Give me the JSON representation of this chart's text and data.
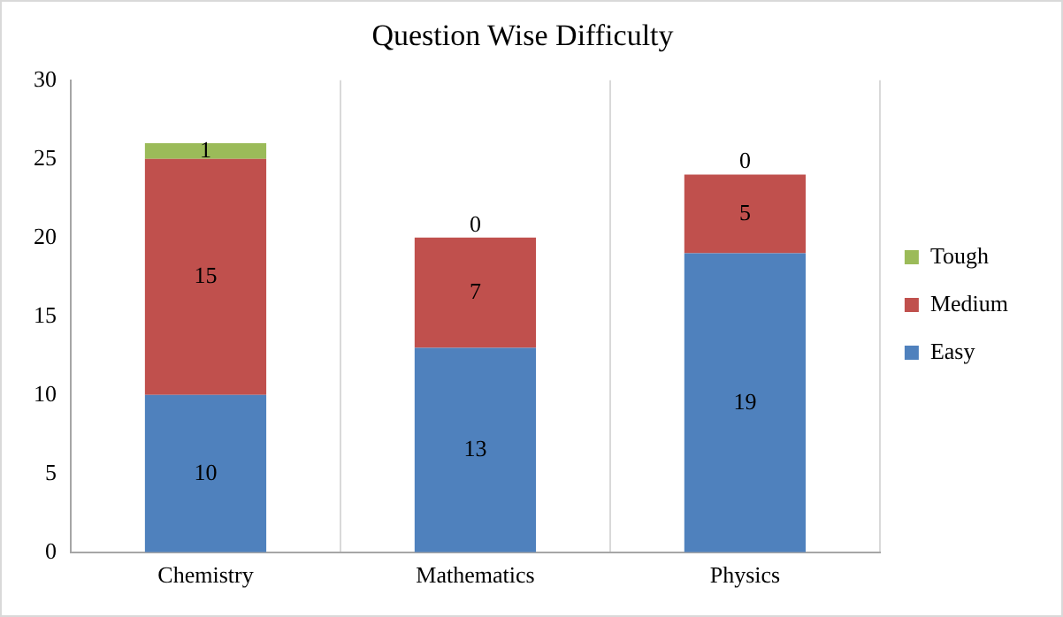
{
  "chart_data": {
    "type": "bar",
    "title": "Question Wise Difficulty",
    "categories": [
      "Chemistry",
      "Mathematics",
      "Physics"
    ],
    "series": [
      {
        "name": "Easy",
        "color": "#4f81bd",
        "values": [
          10,
          13,
          19
        ]
      },
      {
        "name": "Medium",
        "color": "#c0504d",
        "values": [
          15,
          7,
          5
        ]
      },
      {
        "name": "Tough",
        "color": "#9bbb59",
        "values": [
          1,
          0,
          0
        ]
      }
    ],
    "stacked": true,
    "ylim": [
      0,
      30
    ],
    "yticks": [
      0,
      5,
      10,
      15,
      20,
      25,
      30
    ],
    "grid": "x",
    "legend": "right",
    "data_labels": true
  }
}
